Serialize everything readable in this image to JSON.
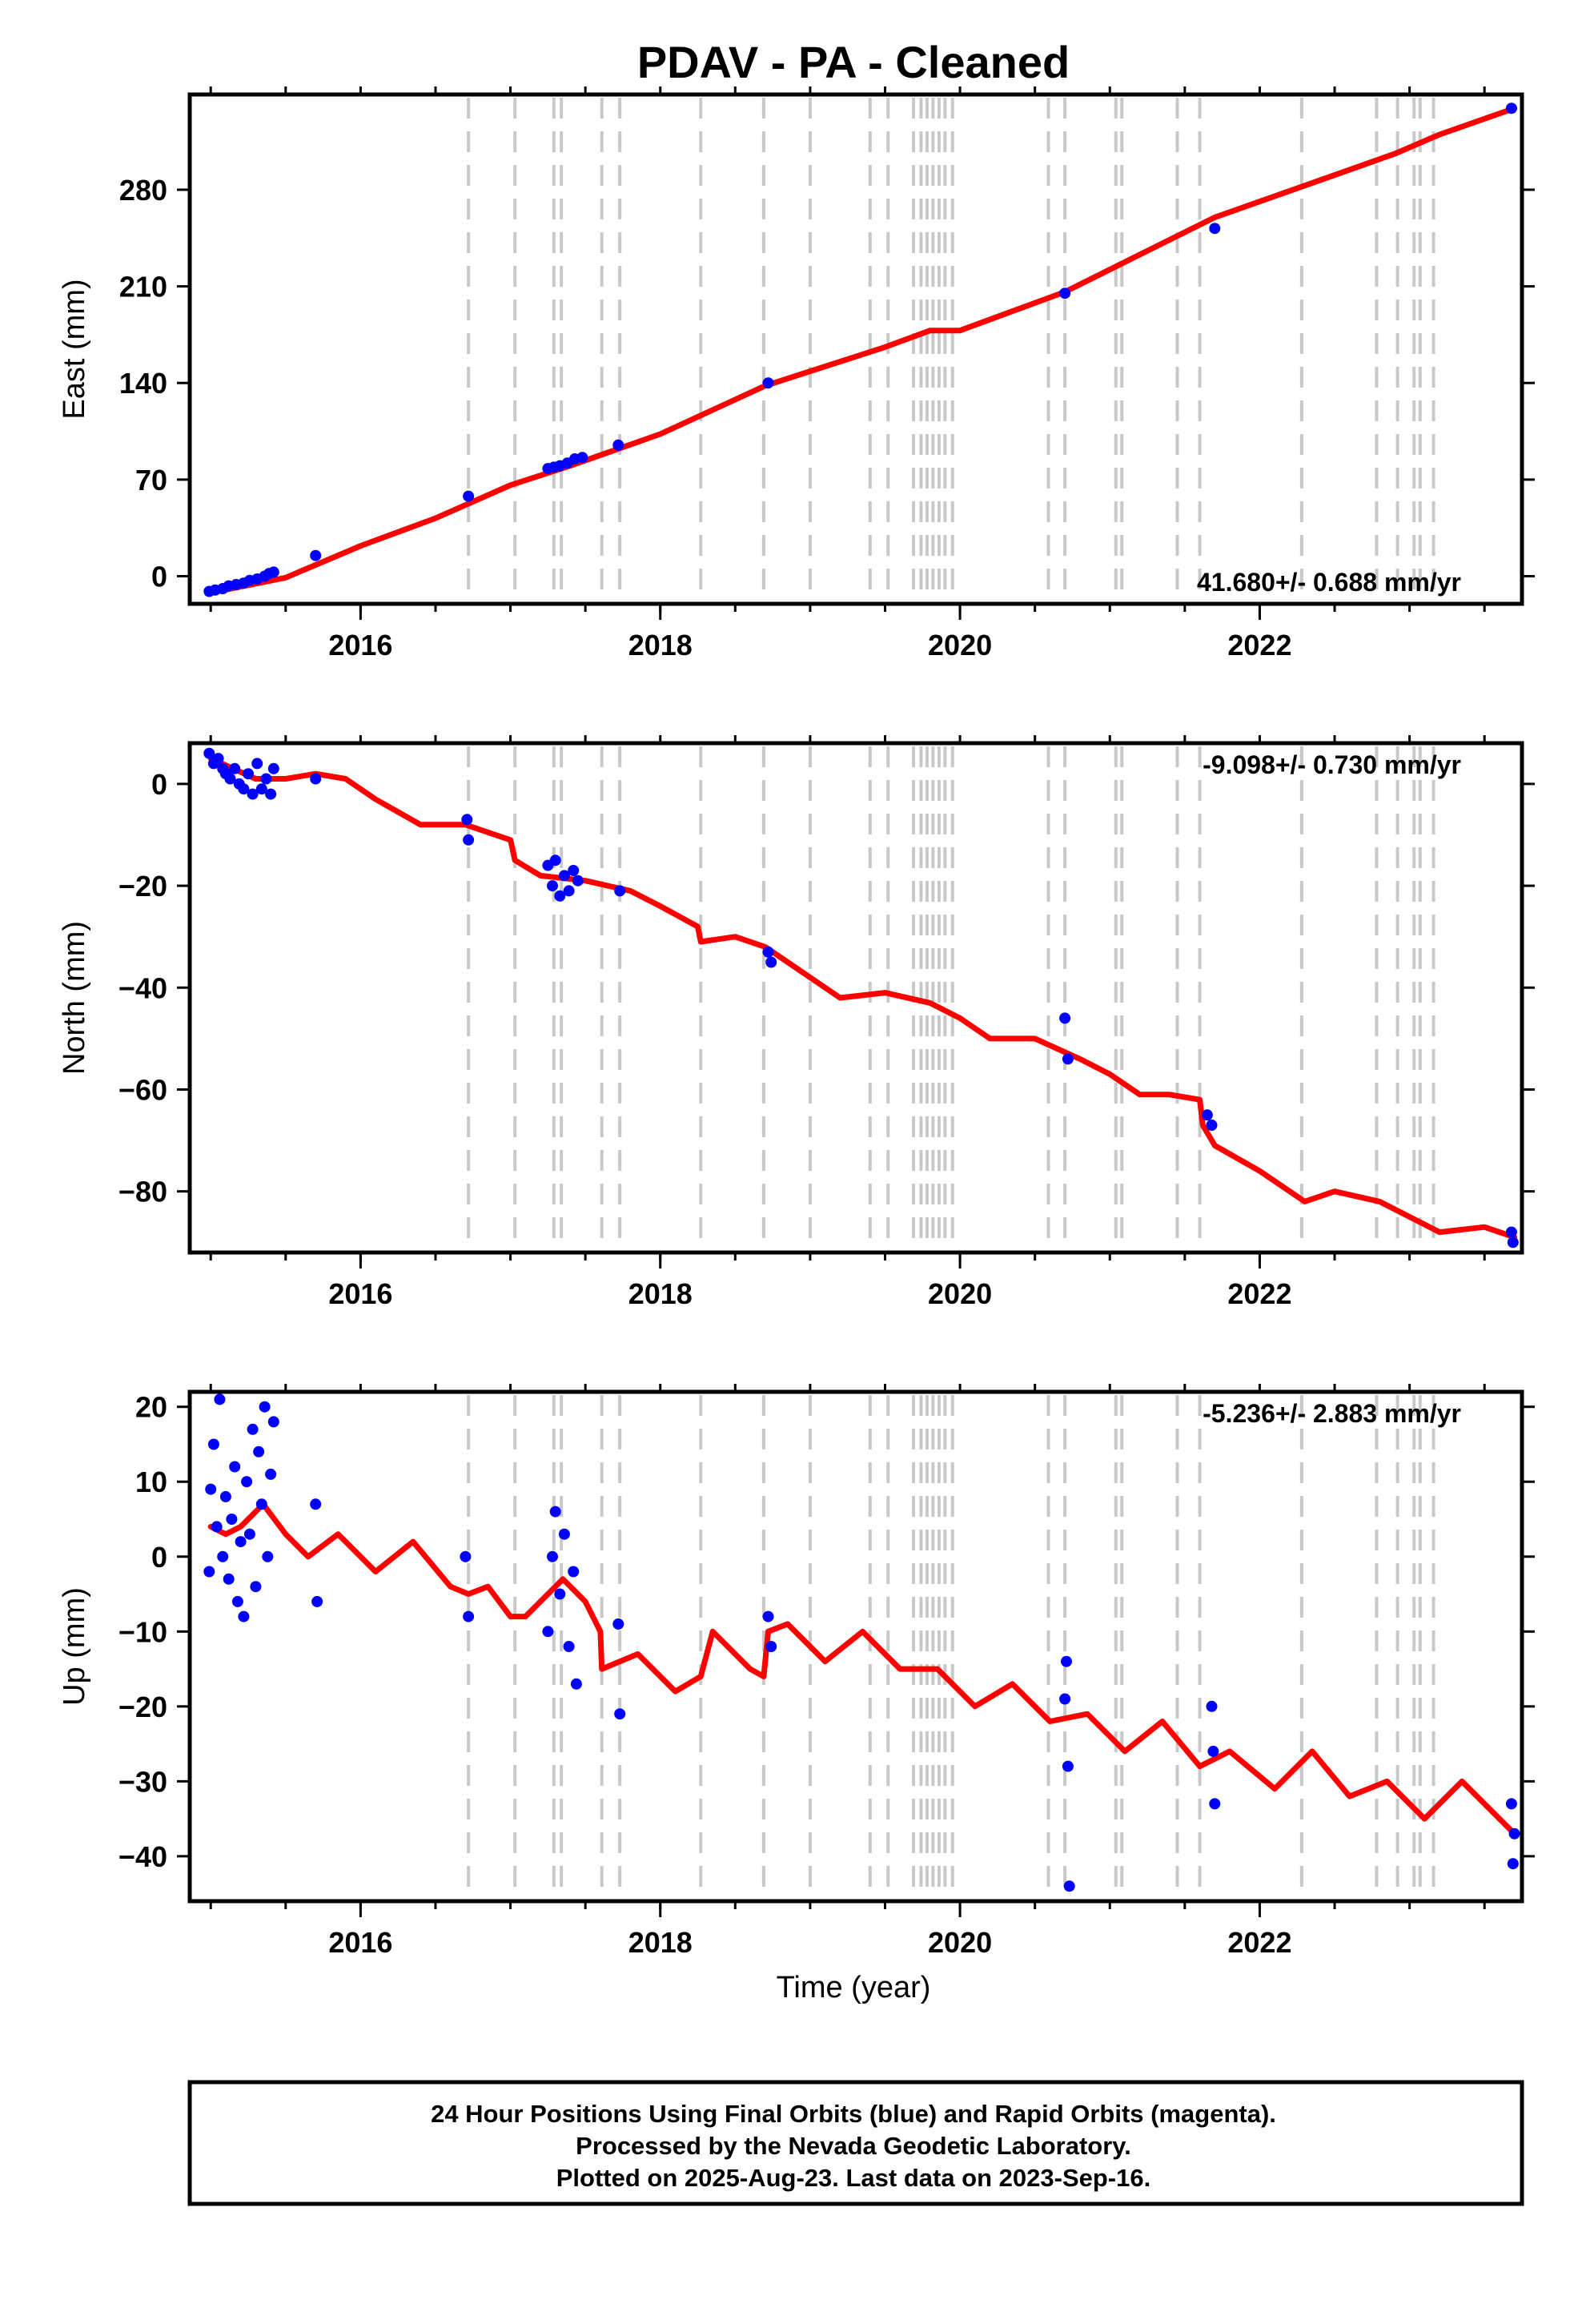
{
  "title": "PDAV  - PA - Cleaned",
  "colors": {
    "model": "#ff0000",
    "points": "#0000ff",
    "steps": "#c8c8c8",
    "frame": "#000000"
  },
  "chart_data": [
    {
      "type": "scatter",
      "id": "east",
      "ylabel": "East (mm)",
      "xlabel": "",
      "rate_label": "41.680+/- 0.688 mm/yr",
      "xlim": [
        2014.86,
        2023.75
      ],
      "ylim": [
        -20,
        349
      ],
      "xticks": [
        2016,
        2018,
        2020,
        2022
      ],
      "yticks": [
        0,
        70,
        140,
        210,
        280
      ],
      "model": [
        [
          2015.0,
          -12
        ],
        [
          2015.5,
          -1
        ],
        [
          2016.0,
          22
        ],
        [
          2016.5,
          42
        ],
        [
          2017.0,
          66
        ],
        [
          2017.4,
          80
        ],
        [
          2018.0,
          103
        ],
        [
          2018.7,
          138
        ],
        [
          2019.5,
          166
        ],
        [
          2019.8,
          178
        ],
        [
          2020.0,
          178
        ],
        [
          2020.7,
          206
        ],
        [
          2021.2,
          233
        ],
        [
          2021.7,
          260
        ],
        [
          2022.3,
          283
        ],
        [
          2022.9,
          306
        ],
        [
          2023.2,
          320
        ],
        [
          2023.7,
          339
        ]
      ],
      "points": [
        [
          2014.99,
          -11
        ],
        [
          2015.03,
          -10
        ],
        [
          2015.08,
          -9
        ],
        [
          2015.12,
          -7
        ],
        [
          2015.17,
          -6
        ],
        [
          2015.22,
          -5
        ],
        [
          2015.26,
          -3
        ],
        [
          2015.31,
          -2
        ],
        [
          2015.36,
          0
        ],
        [
          2015.39,
          2
        ],
        [
          2015.42,
          3
        ],
        [
          2015.7,
          15
        ],
        [
          2016.72,
          58
        ],
        [
          2017.25,
          78
        ],
        [
          2017.29,
          79
        ],
        [
          2017.33,
          80
        ],
        [
          2017.38,
          82
        ],
        [
          2017.43,
          85
        ],
        [
          2017.48,
          86
        ],
        [
          2017.72,
          95
        ],
        [
          2018.72,
          140
        ],
        [
          2020.7,
          205
        ],
        [
          2021.7,
          252
        ],
        [
          2023.68,
          339
        ]
      ],
      "steps": [
        2016.72,
        2017.03,
        2017.29,
        2017.34,
        2017.61,
        2017.73,
        2018.27,
        2018.69,
        2019.0,
        2019.4,
        2019.52,
        2019.69,
        2019.74,
        2019.78,
        2019.82,
        2019.86,
        2019.9,
        2019.95,
        2020.59,
        2020.7,
        2021.04,
        2021.08,
        2021.45,
        2021.6,
        2022.28,
        2022.78,
        2022.92,
        2023.03,
        2023.07,
        2023.16
      ]
    },
    {
      "type": "scatter",
      "id": "north",
      "ylabel": "North (mm)",
      "xlabel": "",
      "rate_label": "-9.098+/- 0.730 mm/yr",
      "xlim": [
        2014.86,
        2023.75
      ],
      "ylim": [
        -92,
        8
      ],
      "xticks": [
        2016,
        2018,
        2020,
        2022
      ],
      "yticks": [
        0,
        -20,
        -40,
        -60,
        -80
      ],
      "model": [
        [
          2015.0,
          5
        ],
        [
          2015.15,
          3
        ],
        [
          2015.3,
          1
        ],
        [
          2015.5,
          1
        ],
        [
          2015.7,
          2
        ],
        [
          2015.9,
          1
        ],
        [
          2016.1,
          -3
        ],
        [
          2016.4,
          -8
        ],
        [
          2016.7,
          -8
        ],
        [
          2017.0,
          -11
        ],
        [
          2017.03,
          -15
        ],
        [
          2017.2,
          -18
        ],
        [
          2017.5,
          -19
        ],
        [
          2017.8,
          -21
        ],
        [
          2018.0,
          -24
        ],
        [
          2018.25,
          -28
        ],
        [
          2018.27,
          -31
        ],
        [
          2018.5,
          -30
        ],
        [
          2018.7,
          -32
        ],
        [
          2018.9,
          -36
        ],
        [
          2019.2,
          -42
        ],
        [
          2019.5,
          -41
        ],
        [
          2019.8,
          -43
        ],
        [
          2020.0,
          -46
        ],
        [
          2020.2,
          -50
        ],
        [
          2020.5,
          -50
        ],
        [
          2020.8,
          -54
        ],
        [
          2021.0,
          -57
        ],
        [
          2021.2,
          -61
        ],
        [
          2021.4,
          -61
        ],
        [
          2021.6,
          -62
        ],
        [
          2021.62,
          -67
        ],
        [
          2021.7,
          -71
        ],
        [
          2022.0,
          -76
        ],
        [
          2022.3,
          -82
        ],
        [
          2022.5,
          -80
        ],
        [
          2022.8,
          -82
        ],
        [
          2023.0,
          -85
        ],
        [
          2023.2,
          -88
        ],
        [
          2023.5,
          -87
        ],
        [
          2023.7,
          -89
        ]
      ],
      "points": [
        [
          2014.99,
          6
        ],
        [
          2015.02,
          4
        ],
        [
          2015.05,
          5
        ],
        [
          2015.08,
          3
        ],
        [
          2015.1,
          2
        ],
        [
          2015.13,
          1
        ],
        [
          2015.16,
          3
        ],
        [
          2015.19,
          0
        ],
        [
          2015.22,
          -1
        ],
        [
          2015.25,
          2
        ],
        [
          2015.28,
          -2
        ],
        [
          2015.31,
          4
        ],
        [
          2015.34,
          -1
        ],
        [
          2015.37,
          1
        ],
        [
          2015.4,
          -2
        ],
        [
          2015.42,
          3
        ],
        [
          2015.7,
          1
        ],
        [
          2016.71,
          -7
        ],
        [
          2016.72,
          -11
        ],
        [
          2017.25,
          -16
        ],
        [
          2017.28,
          -20
        ],
        [
          2017.3,
          -15
        ],
        [
          2017.33,
          -22
        ],
        [
          2017.36,
          -18
        ],
        [
          2017.39,
          -21
        ],
        [
          2017.42,
          -17
        ],
        [
          2017.45,
          -19
        ],
        [
          2017.73,
          -21
        ],
        [
          2018.72,
          -33
        ],
        [
          2018.74,
          -35
        ],
        [
          2020.7,
          -46
        ],
        [
          2020.72,
          -54
        ],
        [
          2021.65,
          -65
        ],
        [
          2021.68,
          -67
        ],
        [
          2023.68,
          -88
        ],
        [
          2023.69,
          -90
        ]
      ],
      "steps": [
        2016.72,
        2017.03,
        2017.29,
        2017.34,
        2017.61,
        2017.73,
        2018.27,
        2018.69,
        2019.0,
        2019.4,
        2019.52,
        2019.69,
        2019.74,
        2019.78,
        2019.82,
        2019.86,
        2019.9,
        2019.95,
        2020.59,
        2020.7,
        2021.04,
        2021.08,
        2021.45,
        2021.6,
        2022.28,
        2022.78,
        2022.92,
        2023.03,
        2023.07,
        2023.16
      ]
    },
    {
      "type": "scatter",
      "id": "up",
      "ylabel": "Up (mm)",
      "xlabel": "Time (year)",
      "rate_label": "-5.236+/- 2.883 mm/yr",
      "xlim": [
        2014.86,
        2023.75
      ],
      "ylim": [
        -46,
        22
      ],
      "xticks": [
        2016,
        2018,
        2020,
        2022
      ],
      "yticks": [
        20,
        10,
        0,
        -10,
        -20,
        -30,
        -40
      ],
      "model": [
        [
          2015.0,
          4
        ],
        [
          2015.1,
          3
        ],
        [
          2015.2,
          4
        ],
        [
          2015.35,
          7
        ],
        [
          2015.5,
          3
        ],
        [
          2015.65,
          0
        ],
        [
          2015.85,
          3
        ],
        [
          2016.1,
          -2
        ],
        [
          2016.35,
          2
        ],
        [
          2016.6,
          -4
        ],
        [
          2016.72,
          -5
        ],
        [
          2016.85,
          -4
        ],
        [
          2017.0,
          -8
        ],
        [
          2017.1,
          -8
        ],
        [
          2017.2,
          -6
        ],
        [
          2017.35,
          -3
        ],
        [
          2017.5,
          -6
        ],
        [
          2017.6,
          -10
        ],
        [
          2017.61,
          -15
        ],
        [
          2017.85,
          -13
        ],
        [
          2018.1,
          -18
        ],
        [
          2018.27,
          -16
        ],
        [
          2018.35,
          -10
        ],
        [
          2018.6,
          -15
        ],
        [
          2018.69,
          -16
        ],
        [
          2018.72,
          -10
        ],
        [
          2018.85,
          -9
        ],
        [
          2019.1,
          -14
        ],
        [
          2019.35,
          -10
        ],
        [
          2019.6,
          -15
        ],
        [
          2019.85,
          -15
        ],
        [
          2020.1,
          -20
        ],
        [
          2020.35,
          -17
        ],
        [
          2020.6,
          -22
        ],
        [
          2020.85,
          -21
        ],
        [
          2021.1,
          -26
        ],
        [
          2021.35,
          -22
        ],
        [
          2021.6,
          -28
        ],
        [
          2021.8,
          -26
        ],
        [
          2022.1,
          -31
        ],
        [
          2022.35,
          -26
        ],
        [
          2022.6,
          -32
        ],
        [
          2022.85,
          -30
        ],
        [
          2023.1,
          -35
        ],
        [
          2023.35,
          -30
        ],
        [
          2023.7,
          -37
        ]
      ],
      "points": [
        [
          2014.99,
          -2
        ],
        [
          2015.0,
          9
        ],
        [
          2015.02,
          15
        ],
        [
          2015.04,
          4
        ],
        [
          2015.06,
          21
        ],
        [
          2015.08,
          0
        ],
        [
          2015.1,
          8
        ],
        [
          2015.12,
          -3
        ],
        [
          2015.14,
          5
        ],
        [
          2015.16,
          12
        ],
        [
          2015.18,
          -6
        ],
        [
          2015.2,
          2
        ],
        [
          2015.22,
          -8
        ],
        [
          2015.24,
          10
        ],
        [
          2015.26,
          3
        ],
        [
          2015.28,
          17
        ],
        [
          2015.3,
          -4
        ],
        [
          2015.32,
          14
        ],
        [
          2015.34,
          7
        ],
        [
          2015.36,
          20
        ],
        [
          2015.38,
          0
        ],
        [
          2015.4,
          11
        ],
        [
          2015.42,
          18
        ],
        [
          2015.7,
          7
        ],
        [
          2015.71,
          -6
        ],
        [
          2016.7,
          0
        ],
        [
          2016.72,
          -8
        ],
        [
          2017.25,
          -10
        ],
        [
          2017.28,
          0
        ],
        [
          2017.3,
          6
        ],
        [
          2017.33,
          -5
        ],
        [
          2017.36,
          3
        ],
        [
          2017.39,
          -12
        ],
        [
          2017.42,
          -2
        ],
        [
          2017.44,
          -17
        ],
        [
          2017.72,
          -9
        ],
        [
          2017.73,
          -21
        ],
        [
          2018.72,
          -8
        ],
        [
          2018.74,
          -12
        ],
        [
          2020.7,
          -19
        ],
        [
          2020.71,
          -14
        ],
        [
          2020.72,
          -28
        ],
        [
          2020.73,
          -44
        ],
        [
          2021.68,
          -20
        ],
        [
          2021.69,
          -26
        ],
        [
          2021.7,
          -33
        ],
        [
          2023.68,
          -33
        ],
        [
          2023.69,
          -41
        ],
        [
          2023.7,
          -37
        ]
      ],
      "steps": [
        2016.72,
        2017.03,
        2017.29,
        2017.34,
        2017.61,
        2017.73,
        2018.27,
        2018.69,
        2019.0,
        2019.4,
        2019.52,
        2019.69,
        2019.74,
        2019.78,
        2019.82,
        2019.86,
        2019.9,
        2019.95,
        2020.59,
        2020.7,
        2021.04,
        2021.08,
        2021.45,
        2021.6,
        2022.28,
        2022.78,
        2022.92,
        2023.03,
        2023.07,
        2023.16
      ]
    }
  ],
  "footer": {
    "line1": "24 Hour Positions Using Final Orbits (blue) and Rapid Orbits (magenta).",
    "line2": "Processed by the Nevada Geodetic Laboratory.",
    "line3": "Plotted on 2025-Aug-23. Last data on 2023-Sep-16."
  }
}
